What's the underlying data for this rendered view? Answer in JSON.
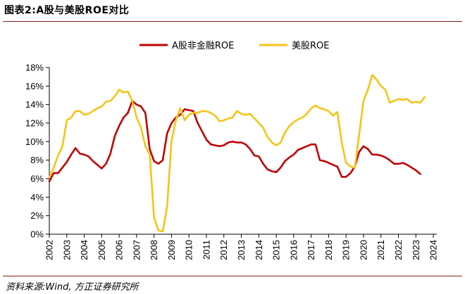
{
  "figure": {
    "title": "图表2:A股与美股ROE对比",
    "source": "资料来源:Wind, 方正证券研究所"
  },
  "colors": {
    "rule": "#8a1c1c",
    "axis": "#000000"
  },
  "chart_data": {
    "type": "line",
    "title": "",
    "xlabel": "",
    "ylabel": "",
    "ylim": [
      0,
      18
    ],
    "xlim": [
      2002,
      2024.2
    ],
    "yticks": [
      {
        "value": 0,
        "label": "0%"
      },
      {
        "value": 2,
        "label": "2%"
      },
      {
        "value": 4,
        "label": "4%"
      },
      {
        "value": 6,
        "label": "6%"
      },
      {
        "value": 8,
        "label": "8%"
      },
      {
        "value": 10,
        "label": "10%"
      },
      {
        "value": 12,
        "label": "12%"
      },
      {
        "value": 14,
        "label": "14%"
      },
      {
        "value": 16,
        "label": "16%"
      },
      {
        "value": 18,
        "label": "18%"
      }
    ],
    "xticks": [
      "2002",
      "2003",
      "2004",
      "2005",
      "2006",
      "2007",
      "2008",
      "2009",
      "2010",
      "2011",
      "2012",
      "2013",
      "2014",
      "2015",
      "2016",
      "2017",
      "2018",
      "2019",
      "2020",
      "2021",
      "2022",
      "2023",
      "2024"
    ],
    "grid": false,
    "legend_position": "top",
    "series": [
      {
        "name": "A股非金融ROE",
        "color": "#c00000",
        "points": [
          [
            2002.0,
            5.7
          ],
          [
            2002.25,
            6.6
          ],
          [
            2002.5,
            6.6
          ],
          [
            2002.75,
            7.2
          ],
          [
            2003.0,
            7.8
          ],
          [
            2003.25,
            8.6
          ],
          [
            2003.5,
            9.3
          ],
          [
            2003.75,
            8.7
          ],
          [
            2004.0,
            8.6
          ],
          [
            2004.25,
            8.4
          ],
          [
            2004.5,
            7.9
          ],
          [
            2004.75,
            7.5
          ],
          [
            2005.0,
            7.1
          ],
          [
            2005.25,
            7.6
          ],
          [
            2005.5,
            8.7
          ],
          [
            2005.75,
            10.6
          ],
          [
            2006.0,
            11.7
          ],
          [
            2006.25,
            12.6
          ],
          [
            2006.5,
            13.1
          ],
          [
            2006.75,
            14.4
          ],
          [
            2007.0,
            14.0
          ],
          [
            2007.25,
            13.8
          ],
          [
            2007.5,
            13.1
          ],
          [
            2007.75,
            9.2
          ],
          [
            2008.0,
            7.9
          ],
          [
            2008.25,
            7.6
          ],
          [
            2008.5,
            8.0
          ],
          [
            2008.75,
            10.9
          ],
          [
            2009.0,
            12.0
          ],
          [
            2009.25,
            12.6
          ],
          [
            2009.5,
            12.9
          ],
          [
            2009.75,
            13.5
          ],
          [
            2010.0,
            13.4
          ],
          [
            2010.25,
            13.3
          ],
          [
            2010.5,
            12.0
          ],
          [
            2010.75,
            11.1
          ],
          [
            2011.0,
            10.2
          ],
          [
            2011.25,
            9.7
          ],
          [
            2011.5,
            9.6
          ],
          [
            2011.75,
            9.5
          ],
          [
            2012.0,
            9.6
          ],
          [
            2012.25,
            9.9
          ],
          [
            2012.5,
            10.0
          ],
          [
            2012.75,
            9.9
          ],
          [
            2013.0,
            9.9
          ],
          [
            2013.25,
            9.7
          ],
          [
            2013.5,
            9.2
          ],
          [
            2013.75,
            8.5
          ],
          [
            2014.0,
            8.4
          ],
          [
            2014.25,
            7.6
          ],
          [
            2014.5,
            7.0
          ],
          [
            2014.75,
            6.8
          ],
          [
            2015.0,
            6.7
          ],
          [
            2015.25,
            7.2
          ],
          [
            2015.5,
            7.9
          ],
          [
            2015.75,
            8.3
          ],
          [
            2016.0,
            8.6
          ],
          [
            2016.25,
            9.1
          ],
          [
            2016.5,
            9.3
          ],
          [
            2016.75,
            9.5
          ],
          [
            2017.0,
            9.7
          ],
          [
            2017.25,
            9.7
          ],
          [
            2017.5,
            8.0
          ],
          [
            2017.75,
            7.9
          ],
          [
            2018.0,
            7.7
          ],
          [
            2018.25,
            7.5
          ],
          [
            2018.5,
            7.3
          ],
          [
            2018.75,
            6.2
          ],
          [
            2019.0,
            6.2
          ],
          [
            2019.25,
            6.6
          ],
          [
            2019.5,
            7.3
          ],
          [
            2019.75,
            8.9
          ],
          [
            2020.0,
            9.5
          ],
          [
            2020.25,
            9.2
          ],
          [
            2020.5,
            8.6
          ],
          [
            2020.75,
            8.6
          ],
          [
            2021.0,
            8.5
          ],
          [
            2021.25,
            8.3
          ],
          [
            2021.5,
            8.0
          ],
          [
            2021.75,
            7.6
          ],
          [
            2022.0,
            7.6
          ],
          [
            2022.25,
            7.7
          ],
          [
            2022.5,
            7.5
          ],
          [
            2022.75,
            7.2
          ],
          [
            2023.0,
            6.9
          ],
          [
            2023.25,
            6.5
          ]
        ]
      },
      {
        "name": "美股ROE",
        "color": "#f5c518",
        "points": [
          [
            2002.0,
            6.1
          ],
          [
            2002.25,
            7.2
          ],
          [
            2002.5,
            8.5
          ],
          [
            2002.75,
            9.5
          ],
          [
            2003.0,
            12.3
          ],
          [
            2003.25,
            12.6
          ],
          [
            2003.5,
            13.3
          ],
          [
            2003.75,
            13.3
          ],
          [
            2004.0,
            12.9
          ],
          [
            2004.25,
            13.0
          ],
          [
            2004.5,
            13.3
          ],
          [
            2004.75,
            13.6
          ],
          [
            2005.0,
            13.8
          ],
          [
            2005.25,
            14.3
          ],
          [
            2005.5,
            14.4
          ],
          [
            2005.75,
            14.9
          ],
          [
            2006.0,
            15.6
          ],
          [
            2006.25,
            15.3
          ],
          [
            2006.5,
            15.4
          ],
          [
            2006.75,
            14.4
          ],
          [
            2007.0,
            12.6
          ],
          [
            2007.25,
            11.5
          ],
          [
            2007.5,
            9.5
          ],
          [
            2007.75,
            8.6
          ],
          [
            2008.0,
            1.8
          ],
          [
            2008.25,
            0.4
          ],
          [
            2008.5,
            0.3
          ],
          [
            2008.75,
            3.0
          ],
          [
            2009.0,
            10.1
          ],
          [
            2009.25,
            12.3
          ],
          [
            2009.5,
            13.6
          ],
          [
            2009.75,
            12.3
          ],
          [
            2010.0,
            12.9
          ],
          [
            2010.25,
            13.1
          ],
          [
            2010.5,
            13.1
          ],
          [
            2010.75,
            13.3
          ],
          [
            2011.0,
            13.3
          ],
          [
            2011.25,
            13.1
          ],
          [
            2011.5,
            12.8
          ],
          [
            2011.75,
            12.2
          ],
          [
            2012.0,
            12.3
          ],
          [
            2012.25,
            12.5
          ],
          [
            2012.5,
            12.6
          ],
          [
            2012.75,
            13.3
          ],
          [
            2013.0,
            13.0
          ],
          [
            2013.25,
            12.9
          ],
          [
            2013.5,
            13.0
          ],
          [
            2013.75,
            12.5
          ],
          [
            2014.0,
            12.0
          ],
          [
            2014.25,
            11.5
          ],
          [
            2014.5,
            10.5
          ],
          [
            2014.75,
            9.9
          ],
          [
            2015.0,
            9.6
          ],
          [
            2015.25,
            9.9
          ],
          [
            2015.5,
            11.0
          ],
          [
            2015.75,
            11.7
          ],
          [
            2016.0,
            12.1
          ],
          [
            2016.25,
            12.4
          ],
          [
            2016.5,
            12.6
          ],
          [
            2016.75,
            13.0
          ],
          [
            2017.0,
            13.6
          ],
          [
            2017.25,
            13.9
          ],
          [
            2017.5,
            13.6
          ],
          [
            2017.75,
            13.5
          ],
          [
            2018.0,
            13.3
          ],
          [
            2018.25,
            12.8
          ],
          [
            2018.5,
            13.2
          ],
          [
            2018.75,
            9.9
          ],
          [
            2019.0,
            7.7
          ],
          [
            2019.25,
            7.3
          ],
          [
            2019.5,
            7.2
          ],
          [
            2019.75,
            10.8
          ],
          [
            2020.0,
            14.4
          ],
          [
            2020.25,
            15.6
          ],
          [
            2020.5,
            17.2
          ],
          [
            2020.75,
            16.7
          ],
          [
            2021.0,
            16.0
          ],
          [
            2021.25,
            15.6
          ],
          [
            2021.5,
            14.2
          ],
          [
            2021.75,
            14.4
          ],
          [
            2022.0,
            14.6
          ],
          [
            2022.25,
            14.5
          ],
          [
            2022.5,
            14.6
          ],
          [
            2022.75,
            14.2
          ],
          [
            2023.0,
            14.3
          ],
          [
            2023.25,
            14.2
          ],
          [
            2023.5,
            14.8
          ]
        ]
      }
    ]
  }
}
